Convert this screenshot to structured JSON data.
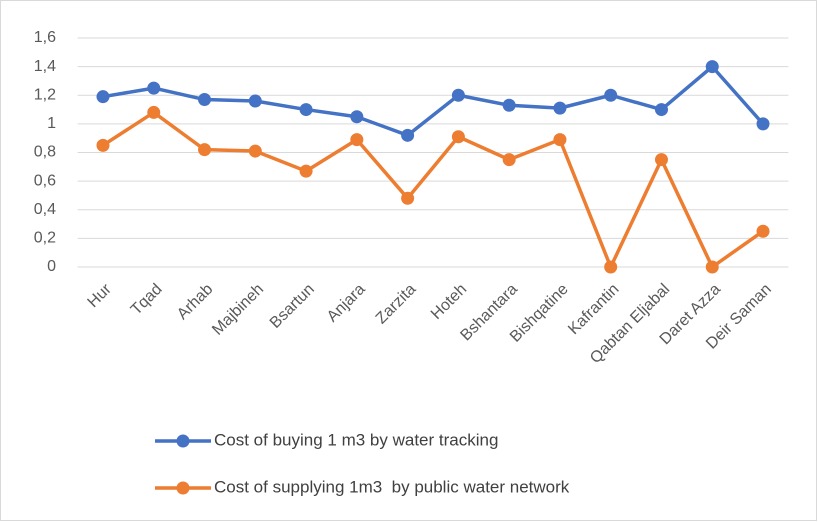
{
  "chart_data": {
    "type": "line",
    "categories": [
      "Hur",
      "Tqad",
      "Arhab",
      "Majbineh",
      "Bsartun",
      "Anjara",
      "Zarzita",
      "Hoteh",
      "Bshantara",
      "Bishqatine",
      "Kafrantin",
      "Qabtan Eljabal",
      "Daret Azza",
      "Deir Saman"
    ],
    "series": [
      {
        "name": "Cost of buying 1 m3 by water tracking",
        "color": "#4472c4",
        "values": [
          1.19,
          1.25,
          1.17,
          1.16,
          1.1,
          1.05,
          0.92,
          1.2,
          1.13,
          1.11,
          1.2,
          1.1,
          1.4,
          1.0
        ]
      },
      {
        "name": "Cost of supplying 1m3  by public water network",
        "color": "#ed7d31",
        "values": [
          0.85,
          1.08,
          0.82,
          0.81,
          0.67,
          0.89,
          0.48,
          0.91,
          0.75,
          0.89,
          0,
          0.75,
          0,
          0.25
        ]
      }
    ],
    "ylim": [
      0,
      1.6
    ],
    "yticks": [
      0,
      {
        "value": 0.2,
        "label": "0,2"
      },
      {
        "value": 0.4,
        "label": "0,4"
      },
      {
        "value": 0.6,
        "label": "0,6"
      },
      {
        "value": 0.8,
        "label": "0,8"
      },
      1,
      {
        "value": 1.2,
        "label": "1,2"
      },
      {
        "value": 1.4,
        "label": "1,4"
      },
      {
        "value": 1.6,
        "label": "1,6"
      }
    ],
    "grid": true,
    "legend": "bottom"
  }
}
